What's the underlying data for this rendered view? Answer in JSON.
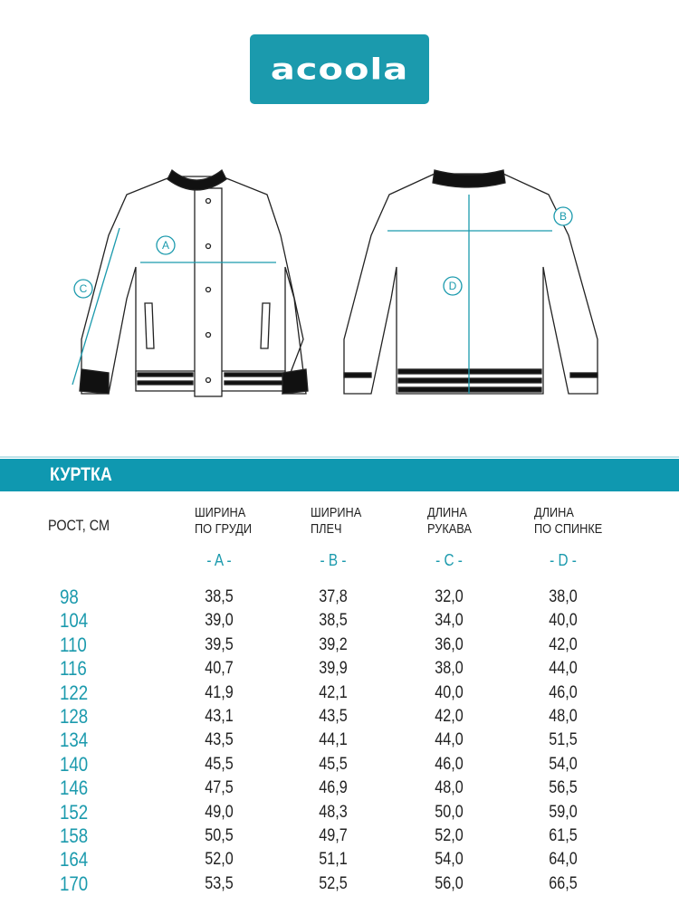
{
  "logo": {
    "text": "acoola"
  },
  "section_title": "КУРТКА",
  "labels": {
    "A": "A",
    "B": "B",
    "C": "C",
    "D": "D"
  },
  "accent_color": "#1b9aad",
  "table": {
    "height_header": "РОСТ, СМ",
    "columns": [
      {
        "line1": "ШИРИНА",
        "line2": "ПО ГРУДИ",
        "letter": "- A -"
      },
      {
        "line1": "ШИРИНА",
        "line2": "ПЛЕЧ",
        "letter": "- B -"
      },
      {
        "line1": "ДЛИНА",
        "line2": "РУКАВА",
        "letter": "- C -"
      },
      {
        "line1": "ДЛИНА",
        "line2": "ПО СПИНКЕ",
        "letter": "- D -"
      }
    ],
    "rows": [
      {
        "h": "98",
        "v": [
          "38,5",
          "37,8",
          "32,0",
          "38,0"
        ]
      },
      {
        "h": "104",
        "v": [
          "39,0",
          "38,5",
          "34,0",
          "40,0"
        ]
      },
      {
        "h": "110",
        "v": [
          "39,5",
          "39,2",
          "36,0",
          "42,0"
        ]
      },
      {
        "h": "116",
        "v": [
          "40,7",
          "39,9",
          "38,0",
          "44,0"
        ]
      },
      {
        "h": "122",
        "v": [
          "41,9",
          "42,1",
          "40,0",
          "46,0"
        ]
      },
      {
        "h": "128",
        "v": [
          "43,1",
          "43,5",
          "42,0",
          "48,0"
        ]
      },
      {
        "h": "134",
        "v": [
          "43,5",
          "44,1",
          "44,0",
          "51,5"
        ]
      },
      {
        "h": "140",
        "v": [
          "45,5",
          "45,5",
          "46,0",
          "54,0"
        ]
      },
      {
        "h": "146",
        "v": [
          "47,5",
          "46,9",
          "48,0",
          "56,5"
        ]
      },
      {
        "h": "152",
        "v": [
          "49,0",
          "48,3",
          "50,0",
          "59,0"
        ]
      },
      {
        "h": "158",
        "v": [
          "50,5",
          "49,7",
          "52,0",
          "61,5"
        ]
      },
      {
        "h": "164",
        "v": [
          "52,0",
          "51,1",
          "54,0",
          "64,0"
        ]
      },
      {
        "h": "170",
        "v": [
          "53,5",
          "52,5",
          "56,0",
          "66,5"
        ]
      }
    ]
  }
}
